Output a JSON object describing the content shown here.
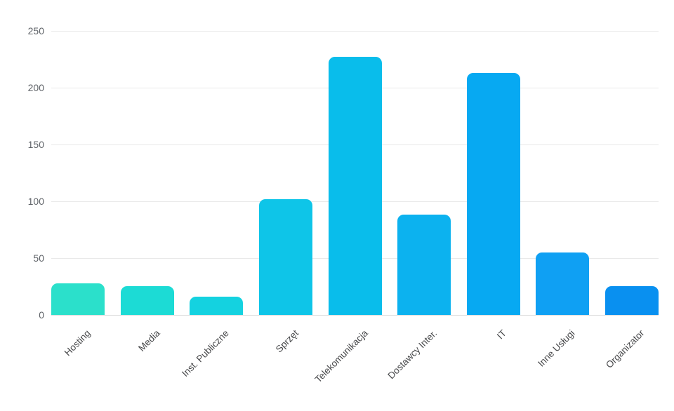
{
  "chart_data": {
    "type": "bar",
    "title": "",
    "xlabel": "",
    "ylabel": "",
    "categories": [
      "Hosting",
      "Media",
      "Inst. Publiczne",
      "Sprzęt",
      "Telekomunikacja",
      "Dostawcy Inter.",
      "IT",
      "Inne Usługi",
      "Organizator"
    ],
    "values": [
      28,
      25,
      16,
      102,
      227,
      88,
      213,
      55,
      25
    ],
    "bar_colors": [
      "#2be0cb",
      "#1cdbd5",
      "#14d2e0",
      "#0ec5e8",
      "#09bdeb",
      "#0cb2ef",
      "#07a9f2",
      "#0fa0f3",
      "#0990f0"
    ],
    "ylim": [
      0,
      250
    ],
    "y_ticks": [
      0,
      50,
      100,
      150,
      200,
      250
    ],
    "grid": "horizontal",
    "legend": "none",
    "x_label_rotation_deg": -45,
    "colors": {
      "background": "#ffffff",
      "gridline": "#e9e9e9",
      "baseline": "#dcdcdc",
      "y_axis_text": "#5f6368",
      "x_axis_text": "#47484a"
    }
  }
}
